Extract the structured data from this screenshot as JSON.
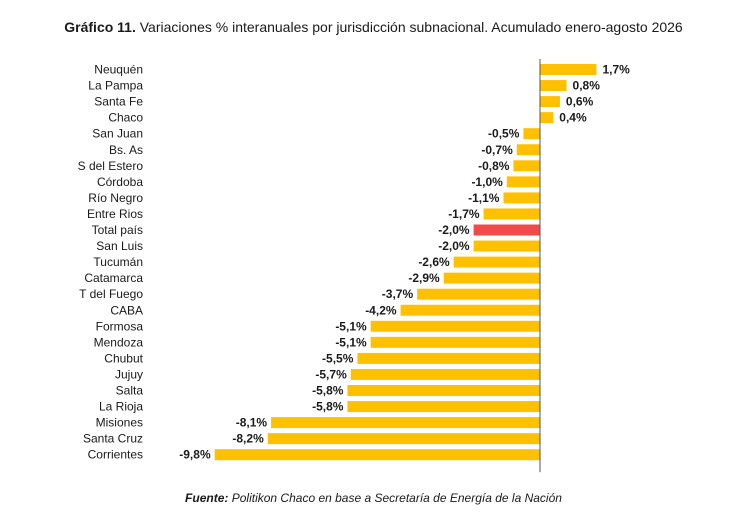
{
  "header": {
    "title_prefix": "Gráfico 11.",
    "title_text": "Variaciones % interanuales por jurisdicción subnacional. Acumulado enero-agosto 2026"
  },
  "footer": {
    "source_label": "Fuente:",
    "source_text": "Politikon Chaco en base a Secretaría de Energía de la Nación"
  },
  "colors": {
    "bar": "#FFC000",
    "highlight": "#F04A4A",
    "axis": "#555555"
  },
  "chart_data": {
    "type": "bar",
    "orientation": "horizontal",
    "title": "Gráfico 11. Variaciones % interanuales por jurisdicción subnacional. Acumulado enero-agosto 2026",
    "categories": [
      "Neuquén",
      "La Pampa",
      "Santa Fe",
      "Chaco",
      "San Juan",
      "Bs. As",
      "S del Estero",
      "Córdoba",
      "Río Negro",
      "Entre Rios",
      "Total país",
      "San Luis",
      "Tucumán",
      "Catamarca",
      "T del Fuego",
      "CABA",
      "Formosa",
      "Mendoza",
      "Chubut",
      "Jujuy",
      "Salta",
      "La Rioja",
      "Misiones",
      "Santa Cruz",
      "Corrientes"
    ],
    "values": [
      1.7,
      0.8,
      0.6,
      0.4,
      -0.5,
      -0.7,
      -0.8,
      -1.0,
      -1.1,
      -1.7,
      -2.0,
      -2.0,
      -2.6,
      -2.9,
      -3.7,
      -4.2,
      -5.1,
      -5.1,
      -5.5,
      -5.7,
      -5.8,
      -5.8,
      -8.1,
      -8.2,
      -9.8
    ],
    "labels": [
      "1,7%",
      "0,8%",
      "0,6%",
      "0,4%",
      "-0,5%",
      "-0,7%",
      "-0,8%",
      "-1,0%",
      "-1,1%",
      "-1,7%",
      "-2,0%",
      "-2,0%",
      "-2,6%",
      "-2,9%",
      "-3,7%",
      "-4,2%",
      "-5,1%",
      "-5,1%",
      "-5,5%",
      "-5,7%",
      "-5,8%",
      "-5,8%",
      "-8,1%",
      "-8,2%",
      "-9,8%"
    ],
    "highlight": "Total país",
    "xlim": [
      -9.8,
      1.7
    ],
    "grid": false,
    "legend": "none"
  }
}
